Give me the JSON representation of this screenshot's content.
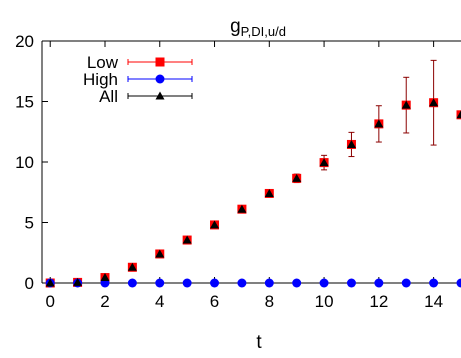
{
  "chart_data": {
    "type": "scatter",
    "title": "g_{P,DI,u/d}",
    "title_main": "g",
    "title_sub": "P,DI,u/d",
    "xlabel": "t",
    "ylabel": "",
    "xlim": [
      -0.3,
      15
    ],
    "ylim": [
      0,
      20
    ],
    "xticks": [
      0,
      2,
      4,
      6,
      8,
      10,
      12,
      14
    ],
    "yticks": [
      0,
      5,
      10,
      15,
      20
    ],
    "grid": false,
    "legend_position": "top-left",
    "series": [
      {
        "name": "Low",
        "color": "#ff0000",
        "marker": "square",
        "error_color": "#8b0000",
        "x": [
          0,
          1,
          2,
          3,
          4,
          5,
          6,
          7,
          8,
          9,
          10,
          11,
          12,
          13,
          14,
          15
        ],
        "y": [
          0,
          0.05,
          0.45,
          1.3,
          2.4,
          3.55,
          4.8,
          6.1,
          7.4,
          8.65,
          9.95,
          11.45,
          13.15,
          14.7,
          14.9,
          13.9
        ],
        "err": [
          0,
          0.05,
          0.1,
          0.12,
          0.15,
          0.15,
          0.18,
          0.2,
          0.25,
          0.35,
          0.6,
          1.0,
          1.5,
          2.3,
          3.5,
          0
        ]
      },
      {
        "name": "High",
        "color": "#0000ff",
        "marker": "circle",
        "x": [
          0,
          1,
          2,
          3,
          4,
          5,
          6,
          7,
          8,
          9,
          10,
          11,
          12,
          13,
          14,
          15
        ],
        "y": [
          0,
          0,
          0,
          0,
          0,
          0,
          0,
          0,
          0,
          0,
          0,
          0,
          0,
          0,
          0,
          0
        ]
      },
      {
        "name": "All",
        "color": "#000000",
        "marker": "triangle",
        "x": [
          0,
          1,
          2,
          3,
          4,
          5,
          6,
          7,
          8,
          9,
          10,
          11,
          12,
          13,
          14,
          15
        ],
        "y": [
          0,
          0.05,
          0.45,
          1.3,
          2.4,
          3.55,
          4.8,
          6.1,
          7.4,
          8.65,
          9.95,
          11.45,
          13.15,
          14.7,
          14.9,
          13.9
        ]
      }
    ]
  }
}
